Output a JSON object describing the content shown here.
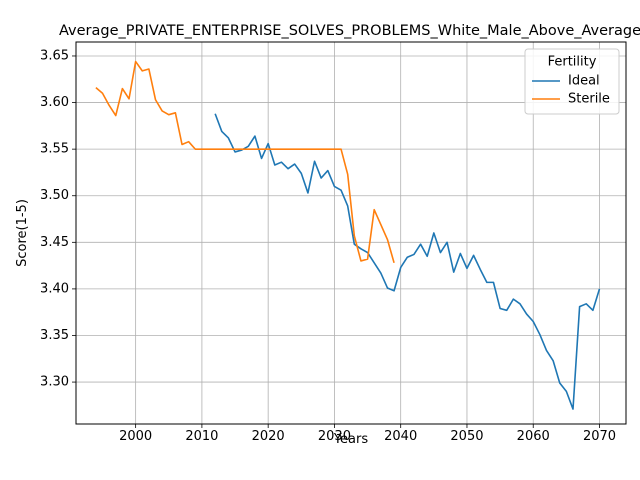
{
  "chart_data": {
    "type": "line",
    "title": "Average_PRIVATE_ENTERPRISE_SOLVES_PROBLEMS_White_Male_Above_Average",
    "xlabel": "Years",
    "ylabel": "Score(1-5)",
    "xlim": [
      1991,
      2074
    ],
    "ylim": [
      3.255,
      3.665
    ],
    "xticks": [
      2000,
      2010,
      2020,
      2030,
      2040,
      2050,
      2060,
      2070
    ],
    "yticks": [
      3.3,
      3.35,
      3.4,
      3.45,
      3.5,
      3.55,
      3.6,
      3.65
    ],
    "grid": true,
    "legend": {
      "title": "Fertility",
      "placement": "top-right"
    },
    "series": [
      {
        "name": "Ideal",
        "color": "#1f77b4",
        "x": [
          2012,
          2013,
          2014,
          2015,
          2016,
          2017,
          2018,
          2019,
          2020,
          2021,
          2022,
          2023,
          2024,
          2025,
          2026,
          2027,
          2028,
          2029,
          2030,
          2031,
          2032,
          2033,
          2034,
          2035,
          2036,
          2037,
          2038,
          2039,
          2040,
          2041,
          2042,
          2043,
          2044,
          2045,
          2046,
          2047,
          2048,
          2049,
          2050,
          2051,
          2052,
          2053,
          2054,
          2055,
          2056,
          2057,
          2058,
          2059,
          2060,
          2061,
          2062,
          2063,
          2064,
          2065,
          2066,
          2067,
          2068,
          2069,
          2070
        ],
        "y": [
          3.588,
          3.569,
          3.562,
          3.547,
          3.549,
          3.553,
          3.564,
          3.54,
          3.556,
          3.533,
          3.536,
          3.529,
          3.534,
          3.524,
          3.503,
          3.537,
          3.519,
          3.527,
          3.51,
          3.506,
          3.489,
          3.448,
          3.443,
          3.439,
          3.428,
          3.417,
          3.401,
          3.398,
          3.423,
          3.434,
          3.437,
          3.448,
          3.435,
          3.46,
          3.439,
          3.45,
          3.418,
          3.438,
          3.422,
          3.436,
          3.421,
          3.407,
          3.407,
          3.379,
          3.377,
          3.389,
          3.384,
          3.373,
          3.365,
          3.351,
          3.334,
          3.323,
          3.299,
          3.29,
          3.271,
          3.381,
          3.384,
          3.377,
          3.4
        ]
      },
      {
        "name": "Sterile",
        "color": "#ff7f0e",
        "x": [
          1994,
          1995,
          1996,
          1997,
          1998,
          1999,
          2000,
          2001,
          2002,
          2003,
          2004,
          2005,
          2006,
          2007,
          2008,
          2009,
          2010,
          2011,
          2012,
          2013,
          2014,
          2015,
          2016,
          2017,
          2018,
          2019,
          2020,
          2021,
          2022,
          2023,
          2024,
          2025,
          2026,
          2027,
          2028,
          2029,
          2030,
          2031,
          2032,
          2033,
          2034,
          2035,
          2036,
          2037,
          2038,
          2039
        ],
        "y": [
          3.616,
          3.61,
          3.597,
          3.586,
          3.615,
          3.604,
          3.644,
          3.634,
          3.636,
          3.603,
          3.591,
          3.587,
          3.589,
          3.555,
          3.558,
          3.55,
          3.55,
          3.55,
          3.55,
          3.55,
          3.55,
          3.55,
          3.55,
          3.55,
          3.55,
          3.55,
          3.55,
          3.55,
          3.55,
          3.55,
          3.55,
          3.55,
          3.55,
          3.55,
          3.55,
          3.55,
          3.55,
          3.55,
          3.523,
          3.457,
          3.43,
          3.432,
          3.485,
          3.469,
          3.453,
          3.428
        ]
      }
    ]
  }
}
